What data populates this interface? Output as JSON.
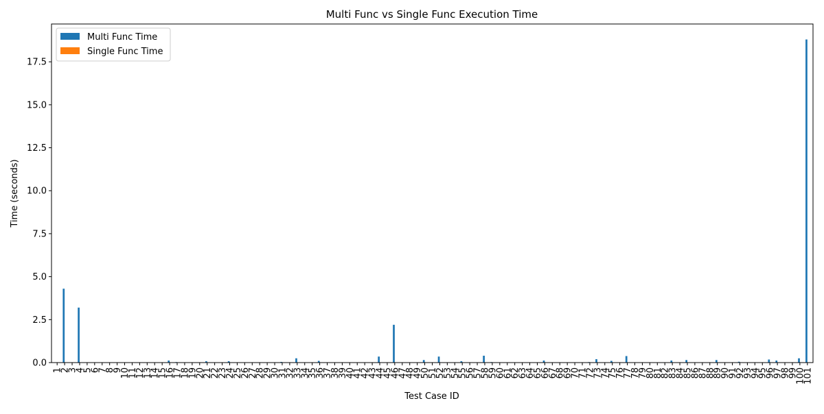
{
  "chart_data": {
    "type": "bar",
    "title": "Multi Func vs Single Func Execution Time",
    "xlabel": "Test Case ID",
    "ylabel": "Time (seconds)",
    "ylim": [
      0,
      19.7
    ],
    "yticks": [
      0.0,
      2.5,
      5.0,
      7.5,
      10.0,
      12.5,
      15.0,
      17.5
    ],
    "ytick_labels": [
      "0.0",
      "2.5",
      "5.0",
      "7.5",
      "10.0",
      "12.5",
      "15.0",
      "17.5"
    ],
    "grid": false,
    "legend_position": "top-left",
    "categories": [
      "1",
      "2",
      "3",
      "4",
      "5",
      "6",
      "7",
      "8",
      "9",
      "10",
      "11",
      "12",
      "13",
      "14",
      "15",
      "16",
      "17",
      "18",
      "19",
      "20",
      "21",
      "22",
      "23",
      "24",
      "25",
      "26",
      "27",
      "28",
      "29",
      "30",
      "31",
      "32",
      "33",
      "34",
      "35",
      "36",
      "37",
      "38",
      "39",
      "40",
      "41",
      "42",
      "43",
      "44",
      "45",
      "46",
      "47",
      "48",
      "49",
      "50",
      "51",
      "52",
      "53",
      "54",
      "55",
      "56",
      "57",
      "58",
      "59",
      "60",
      "61",
      "62",
      "63",
      "64",
      "65",
      "66",
      "67",
      "68",
      "69",
      "70",
      "71",
      "72",
      "73",
      "74",
      "75",
      "76",
      "77",
      "78",
      "79",
      "80",
      "81",
      "82",
      "83",
      "84",
      "85",
      "86",
      "87",
      "88",
      "89",
      "90",
      "91",
      "92",
      "93",
      "94",
      "95",
      "96",
      "97",
      "98",
      "99",
      "100",
      "101"
    ],
    "series": [
      {
        "name": "Multi Func Time",
        "color": "#1f77b4",
        "values": [
          0.01,
          4.3,
          0.01,
          3.2,
          0.01,
          0.01,
          0.01,
          0.01,
          0.01,
          0.01,
          0.01,
          0.01,
          0.01,
          0.01,
          0.01,
          0.12,
          0.03,
          0.01,
          0.01,
          0.01,
          0.08,
          0.01,
          0.01,
          0.08,
          0.01,
          0.01,
          0.01,
          0.01,
          0.01,
          0.01,
          0.04,
          0.01,
          0.25,
          0.01,
          0.01,
          0.1,
          0.01,
          0.01,
          0.01,
          0.01,
          0.01,
          0.01,
          0.01,
          0.35,
          0.01,
          2.2,
          0.01,
          0.01,
          0.01,
          0.15,
          0.01,
          0.35,
          0.01,
          0.01,
          0.08,
          0.01,
          0.01,
          0.4,
          0.03,
          0.01,
          0.01,
          0.01,
          0.01,
          0.01,
          0.01,
          0.12,
          0.01,
          0.01,
          0.01,
          0.01,
          0.01,
          0.03,
          0.2,
          0.01,
          0.1,
          0.01,
          0.38,
          0.01,
          0.01,
          0.01,
          0.01,
          0.01,
          0.12,
          0.01,
          0.15,
          0.01,
          0.01,
          0.01,
          0.15,
          0.01,
          0.01,
          0.05,
          0.01,
          0.01,
          0.01,
          0.18,
          0.12,
          0.01,
          0.01,
          0.25,
          18.8
        ]
      },
      {
        "name": "Single Func Time",
        "color": "#ff7f0e",
        "values": [
          0.002,
          0.002,
          0.002,
          0.002,
          0.002,
          0.002,
          0.002,
          0.002,
          0.002,
          0.002,
          0.002,
          0.002,
          0.002,
          0.002,
          0.002,
          0.002,
          0.002,
          0.002,
          0.002,
          0.002,
          0.002,
          0.002,
          0.002,
          0.002,
          0.002,
          0.002,
          0.002,
          0.002,
          0.002,
          0.002,
          0.002,
          0.002,
          0.002,
          0.002,
          0.002,
          0.002,
          0.002,
          0.002,
          0.002,
          0.002,
          0.002,
          0.002,
          0.002,
          0.002,
          0.002,
          0.002,
          0.002,
          0.002,
          0.002,
          0.002,
          0.002,
          0.002,
          0.002,
          0.002,
          0.002,
          0.002,
          0.002,
          0.002,
          0.002,
          0.002,
          0.002,
          0.002,
          0.002,
          0.002,
          0.002,
          0.002,
          0.002,
          0.002,
          0.002,
          0.002,
          0.002,
          0.002,
          0.002,
          0.002,
          0.002,
          0.002,
          0.002,
          0.002,
          0.002,
          0.002,
          0.002,
          0.002,
          0.002,
          0.002,
          0.002,
          0.002,
          0.002,
          0.002,
          0.002,
          0.002,
          0.002,
          0.002,
          0.002,
          0.002,
          0.002,
          0.002,
          0.002,
          0.002,
          0.002,
          0.002,
          0.002
        ]
      }
    ]
  }
}
